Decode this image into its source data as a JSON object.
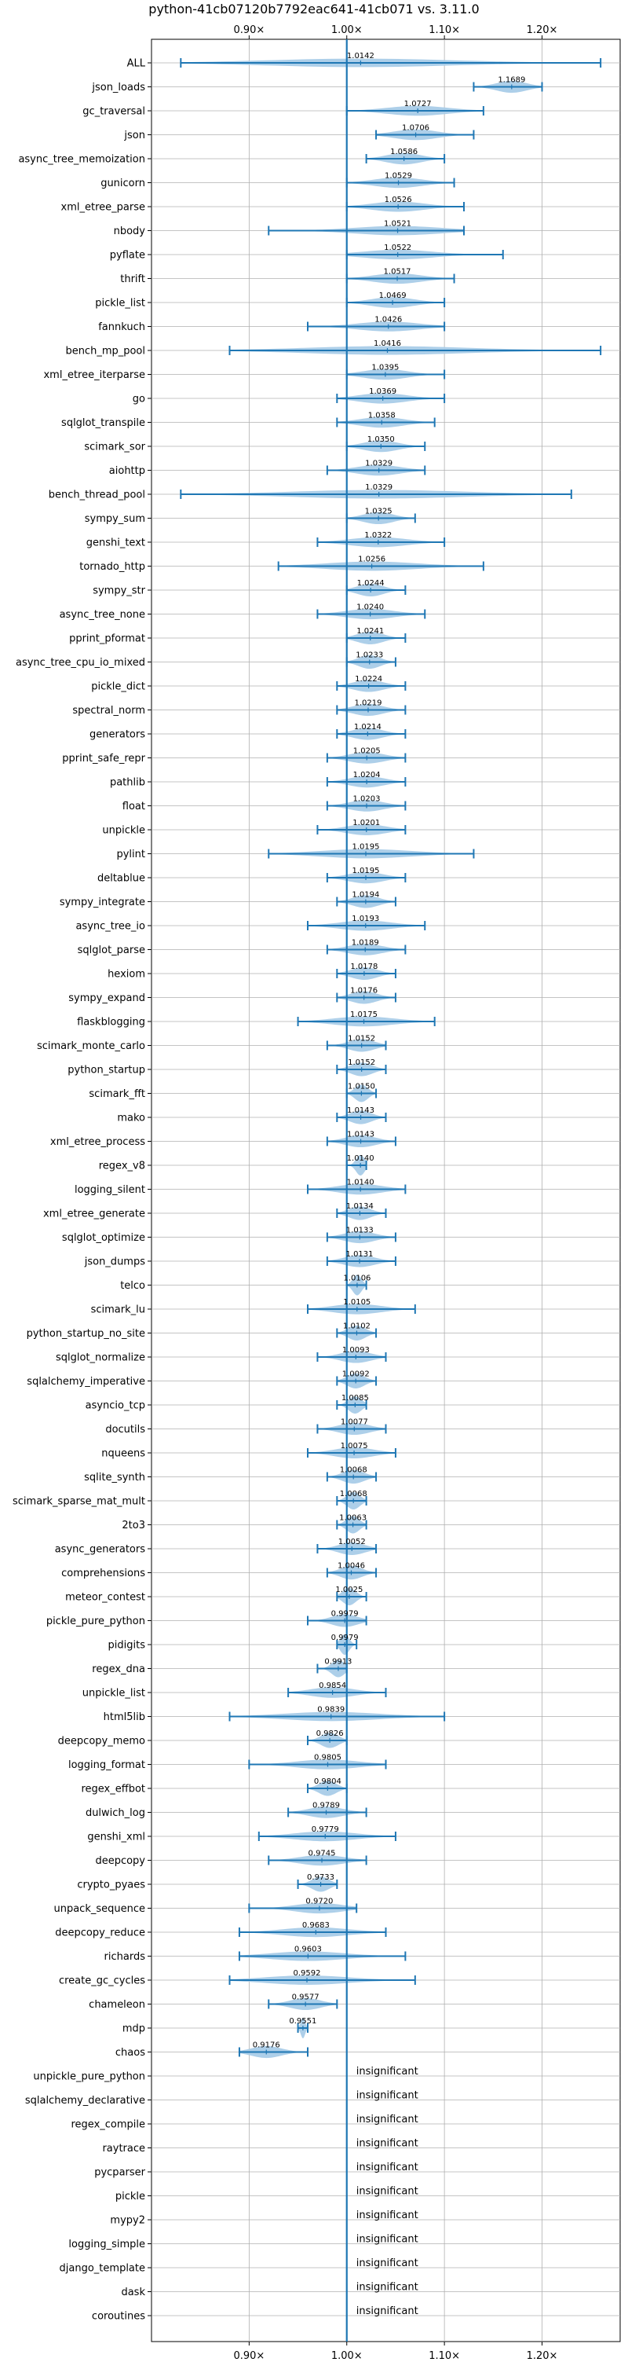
{
  "chart_data": {
    "type": "violin",
    "title": "python-41cb07120b7792eac641-41cb071 vs. 3.11.0",
    "xlabel": "",
    "ylabel": "",
    "xlim": [
      0.8,
      1.28
    ],
    "x_ticks": [
      {
        "value": 0.9,
        "label": "0.90×"
      },
      {
        "value": 1.0,
        "label": "1.00×"
      },
      {
        "value": 1.1,
        "label": "1.10×"
      },
      {
        "value": 1.2,
        "label": "1.20×"
      }
    ],
    "reference_line": 1.0,
    "grid": true,
    "colors": {
      "violin": "#a9cce8",
      "line": "#1f77b4",
      "grid": "#b0b0b0"
    },
    "insignificant_label": "insignificant",
    "benchmarks": [
      {
        "name": "ALL",
        "median": 1.0142,
        "min": 0.83,
        "max": 1.26
      },
      {
        "name": "json_loads",
        "median": 1.1689,
        "min": 1.13,
        "max": 1.2
      },
      {
        "name": "gc_traversal",
        "median": 1.0727,
        "min": 1.0,
        "max": 1.14
      },
      {
        "name": "json",
        "median": 1.0706,
        "min": 1.03,
        "max": 1.13
      },
      {
        "name": "async_tree_memoization",
        "median": 1.0586,
        "min": 1.02,
        "max": 1.1
      },
      {
        "name": "gunicorn",
        "median": 1.0529,
        "min": 1.0,
        "max": 1.11
      },
      {
        "name": "xml_etree_parse",
        "median": 1.0526,
        "min": 1.0,
        "max": 1.12
      },
      {
        "name": "nbody",
        "median": 1.0521,
        "min": 0.92,
        "max": 1.12
      },
      {
        "name": "pyflate",
        "median": 1.0522,
        "min": 1.0,
        "max": 1.16
      },
      {
        "name": "thrift",
        "median": 1.0517,
        "min": 1.0,
        "max": 1.11
      },
      {
        "name": "pickle_list",
        "median": 1.0469,
        "min": 1.0,
        "max": 1.1
      },
      {
        "name": "fannkuch",
        "median": 1.0426,
        "min": 0.96,
        "max": 1.1
      },
      {
        "name": "bench_mp_pool",
        "median": 1.0416,
        "min": 0.88,
        "max": 1.26
      },
      {
        "name": "xml_etree_iterparse",
        "median": 1.0395,
        "min": 1.0,
        "max": 1.1
      },
      {
        "name": "go",
        "median": 1.0369,
        "min": 0.99,
        "max": 1.1
      },
      {
        "name": "sqlglot_transpile",
        "median": 1.0358,
        "min": 0.99,
        "max": 1.09
      },
      {
        "name": "scimark_sor",
        "median": 1.035,
        "min": 1.0,
        "max": 1.08
      },
      {
        "name": "aiohttp",
        "median": 1.0329,
        "min": 0.98,
        "max": 1.08
      },
      {
        "name": "bench_thread_pool",
        "median": 1.0329,
        "min": 0.83,
        "max": 1.23
      },
      {
        "name": "sympy_sum",
        "median": 1.0325,
        "min": 1.0,
        "max": 1.07
      },
      {
        "name": "genshi_text",
        "median": 1.0322,
        "min": 0.97,
        "max": 1.1
      },
      {
        "name": "tornado_http",
        "median": 1.0256,
        "min": 0.93,
        "max": 1.14
      },
      {
        "name": "sympy_str",
        "median": 1.0244,
        "min": 1.0,
        "max": 1.06
      },
      {
        "name": "async_tree_none",
        "median": 1.024,
        "min": 0.97,
        "max": 1.08
      },
      {
        "name": "pprint_pformat",
        "median": 1.0241,
        "min": 1.0,
        "max": 1.06
      },
      {
        "name": "async_tree_cpu_io_mixed",
        "median": 1.0233,
        "min": 1.0,
        "max": 1.05
      },
      {
        "name": "pickle_dict",
        "median": 1.0224,
        "min": 0.99,
        "max": 1.06
      },
      {
        "name": "spectral_norm",
        "median": 1.0219,
        "min": 0.99,
        "max": 1.06
      },
      {
        "name": "generators",
        "median": 1.0214,
        "min": 0.99,
        "max": 1.06
      },
      {
        "name": "pprint_safe_repr",
        "median": 1.0205,
        "min": 0.98,
        "max": 1.06
      },
      {
        "name": "pathlib",
        "median": 1.0204,
        "min": 0.98,
        "max": 1.06
      },
      {
        "name": "float",
        "median": 1.0203,
        "min": 0.98,
        "max": 1.06
      },
      {
        "name": "unpickle",
        "median": 1.0201,
        "min": 0.97,
        "max": 1.06
      },
      {
        "name": "pylint",
        "median": 1.0195,
        "min": 0.92,
        "max": 1.13
      },
      {
        "name": "deltablue",
        "median": 1.0195,
        "min": 0.98,
        "max": 1.06
      },
      {
        "name": "sympy_integrate",
        "median": 1.0194,
        "min": 0.99,
        "max": 1.05
      },
      {
        "name": "async_tree_io",
        "median": 1.0193,
        "min": 0.96,
        "max": 1.08
      },
      {
        "name": "sqlglot_parse",
        "median": 1.0189,
        "min": 0.98,
        "max": 1.06
      },
      {
        "name": "hexiom",
        "median": 1.0178,
        "min": 0.99,
        "max": 1.05
      },
      {
        "name": "sympy_expand",
        "median": 1.0176,
        "min": 0.99,
        "max": 1.05
      },
      {
        "name": "flaskblogging",
        "median": 1.0175,
        "min": 0.95,
        "max": 1.09
      },
      {
        "name": "scimark_monte_carlo",
        "median": 1.0152,
        "min": 0.98,
        "max": 1.04
      },
      {
        "name": "python_startup",
        "median": 1.0152,
        "min": 0.99,
        "max": 1.04
      },
      {
        "name": "scimark_fft",
        "median": 1.015,
        "min": 1.0,
        "max": 1.03
      },
      {
        "name": "mako",
        "median": 1.0143,
        "min": 0.99,
        "max": 1.04
      },
      {
        "name": "xml_etree_process",
        "median": 1.0143,
        "min": 0.98,
        "max": 1.05
      },
      {
        "name": "regex_v8",
        "median": 1.014,
        "min": 1.0,
        "max": 1.02
      },
      {
        "name": "logging_silent",
        "median": 1.014,
        "min": 0.96,
        "max": 1.06
      },
      {
        "name": "xml_etree_generate",
        "median": 1.0134,
        "min": 0.99,
        "max": 1.04
      },
      {
        "name": "sqlglot_optimize",
        "median": 1.0133,
        "min": 0.98,
        "max": 1.05
      },
      {
        "name": "json_dumps",
        "median": 1.0131,
        "min": 0.98,
        "max": 1.05
      },
      {
        "name": "telco",
        "median": 1.0106,
        "min": 1.0,
        "max": 1.02
      },
      {
        "name": "scimark_lu",
        "median": 1.0105,
        "min": 0.96,
        "max": 1.07
      },
      {
        "name": "python_startup_no_site",
        "median": 1.0102,
        "min": 0.99,
        "max": 1.03
      },
      {
        "name": "sqlglot_normalize",
        "median": 1.0093,
        "min": 0.97,
        "max": 1.04
      },
      {
        "name": "sqlalchemy_imperative",
        "median": 1.0092,
        "min": 0.99,
        "max": 1.03
      },
      {
        "name": "asyncio_tcp",
        "median": 1.0085,
        "min": 0.99,
        "max": 1.02
      },
      {
        "name": "docutils",
        "median": 1.0077,
        "min": 0.97,
        "max": 1.04
      },
      {
        "name": "nqueens",
        "median": 1.0075,
        "min": 0.96,
        "max": 1.05
      },
      {
        "name": "sqlite_synth",
        "median": 1.0068,
        "min": 0.98,
        "max": 1.03
      },
      {
        "name": "scimark_sparse_mat_mult",
        "median": 1.0068,
        "min": 0.99,
        "max": 1.02
      },
      {
        "name": "2to3",
        "median": 1.0063,
        "min": 0.99,
        "max": 1.02
      },
      {
        "name": "async_generators",
        "median": 1.0052,
        "min": 0.97,
        "max": 1.03
      },
      {
        "name": "comprehensions",
        "median": 1.0046,
        "min": 0.98,
        "max": 1.03
      },
      {
        "name": "meteor_contest",
        "median": 1.0025,
        "min": 0.99,
        "max": 1.02
      },
      {
        "name": "pickle_pure_python",
        "median": 0.9979,
        "min": 0.96,
        "max": 1.02
      },
      {
        "name": "pidigits",
        "median": 0.9979,
        "min": 0.99,
        "max": 1.01
      },
      {
        "name": "regex_dna",
        "median": 0.9913,
        "min": 0.97,
        "max": 1.0
      },
      {
        "name": "unpickle_list",
        "median": 0.9854,
        "min": 0.94,
        "max": 1.04
      },
      {
        "name": "html5lib",
        "median": 0.9839,
        "min": 0.88,
        "max": 1.1
      },
      {
        "name": "deepcopy_memo",
        "median": 0.9826,
        "min": 0.96,
        "max": 1.0
      },
      {
        "name": "logging_format",
        "median": 0.9805,
        "min": 0.9,
        "max": 1.04
      },
      {
        "name": "regex_effbot",
        "median": 0.9804,
        "min": 0.96,
        "max": 1.0
      },
      {
        "name": "dulwich_log",
        "median": 0.9789,
        "min": 0.94,
        "max": 1.02
      },
      {
        "name": "genshi_xml",
        "median": 0.9779,
        "min": 0.91,
        "max": 1.05
      },
      {
        "name": "deepcopy",
        "median": 0.9745,
        "min": 0.92,
        "max": 1.02
      },
      {
        "name": "crypto_pyaes",
        "median": 0.9733,
        "min": 0.95,
        "max": 0.99
      },
      {
        "name": "unpack_sequence",
        "median": 0.972,
        "min": 0.9,
        "max": 1.01
      },
      {
        "name": "deepcopy_reduce",
        "median": 0.9683,
        "min": 0.89,
        "max": 1.04
      },
      {
        "name": "richards",
        "median": 0.9603,
        "min": 0.89,
        "max": 1.06
      },
      {
        "name": "create_gc_cycles",
        "median": 0.9592,
        "min": 0.88,
        "max": 1.07
      },
      {
        "name": "chameleon",
        "median": 0.9577,
        "min": 0.92,
        "max": 0.99
      },
      {
        "name": "mdp",
        "median": 0.9551,
        "min": 0.95,
        "max": 0.96
      },
      {
        "name": "chaos",
        "median": 0.9176,
        "min": 0.89,
        "max": 0.96
      }
    ],
    "insignificant": [
      "unpickle_pure_python",
      "sqlalchemy_declarative",
      "regex_compile",
      "raytrace",
      "pycparser",
      "pickle",
      "mypy2",
      "logging_simple",
      "django_template",
      "dask",
      "coroutines"
    ]
  }
}
